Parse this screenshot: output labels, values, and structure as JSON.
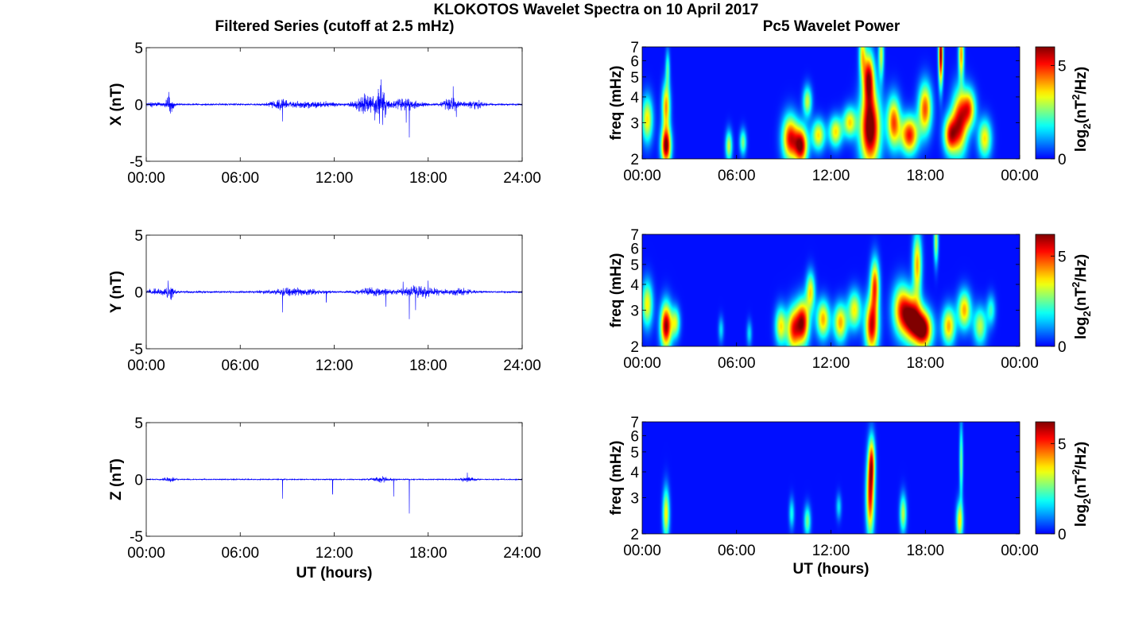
{
  "figure": {
    "title": "KLOKOTOS Wavelet Spectra on 10 April 2017",
    "left_column_title": "Filtered Series (cutoff at 2.5 mHz)",
    "right_column_title": "Pc5 Wavelet Power"
  },
  "colors": {
    "series_line": "#0000ff",
    "axes": "#000000",
    "spectrogram_background": "#00008f"
  },
  "chart_data": [
    {
      "id": "ts-x",
      "type": "line",
      "ylabel": "X (nT)",
      "xlabel": "",
      "xlim": [
        0,
        24
      ],
      "ylim": [
        -5,
        5
      ],
      "xticks": [
        "00:00",
        "06:00",
        "12:00",
        "18:00",
        "24:00"
      ],
      "yticks": [
        "5",
        "0",
        "-5"
      ],
      "base_amplitude": 0.1,
      "bursts": [
        {
          "t": 0.5,
          "w": 0.5,
          "a": 0.2
        },
        {
          "t": 1.5,
          "w": 0.25,
          "a": 0.8
        },
        {
          "t": 8.5,
          "w": 0.6,
          "a": 0.4
        },
        {
          "t": 10.5,
          "w": 1.5,
          "a": 0.3
        },
        {
          "t": 14.0,
          "w": 0.7,
          "a": 0.9
        },
        {
          "t": 15.0,
          "w": 0.35,
          "a": 1.6
        },
        {
          "t": 16.5,
          "w": 1.0,
          "a": 0.5
        },
        {
          "t": 19.5,
          "w": 0.6,
          "a": 0.6
        },
        {
          "t": 21.0,
          "w": 0.5,
          "a": 0.4
        }
      ],
      "spikes": [
        {
          "t": 1.45,
          "v": 1.1
        },
        {
          "t": 1.55,
          "v": -0.8
        },
        {
          "t": 8.7,
          "v": -1.5
        },
        {
          "t": 14.6,
          "v": -1.4
        },
        {
          "t": 15.0,
          "v": 2.2
        },
        {
          "t": 15.1,
          "v": -1.8
        },
        {
          "t": 16.6,
          "v": -1.6
        },
        {
          "t": 16.8,
          "v": -2.9
        },
        {
          "t": 19.6,
          "v": 1.6
        },
        {
          "t": 19.8,
          "v": -1.1
        }
      ]
    },
    {
      "id": "ts-y",
      "type": "line",
      "ylabel": "Y (nT)",
      "xlabel": "",
      "xlim": [
        0,
        24
      ],
      "ylim": [
        -5,
        5
      ],
      "xticks": [
        "00:00",
        "06:00",
        "12:00",
        "18:00",
        "24:00"
      ],
      "yticks": [
        "5",
        "0",
        "-5"
      ],
      "base_amplitude": 0.1,
      "bursts": [
        {
          "t": 0.6,
          "w": 0.6,
          "a": 0.25
        },
        {
          "t": 1.5,
          "w": 0.3,
          "a": 0.6
        },
        {
          "t": 9.5,
          "w": 1.5,
          "a": 0.35
        },
        {
          "t": 14.5,
          "w": 1.0,
          "a": 0.35
        },
        {
          "t": 17.5,
          "w": 1.2,
          "a": 0.55
        },
        {
          "t": 20.0,
          "w": 0.8,
          "a": 0.3
        }
      ],
      "spikes": [
        {
          "t": 1.4,
          "v": 1.0
        },
        {
          "t": 1.6,
          "v": -0.7
        },
        {
          "t": 8.7,
          "v": -1.8
        },
        {
          "t": 11.5,
          "v": -0.9
        },
        {
          "t": 15.3,
          "v": -1.3
        },
        {
          "t": 16.4,
          "v": 0.9
        },
        {
          "t": 16.8,
          "v": -2.4
        },
        {
          "t": 17.2,
          "v": -1.6
        },
        {
          "t": 18.0,
          "v": 1.0
        }
      ]
    },
    {
      "id": "ts-z",
      "type": "line",
      "ylabel": "Z (nT)",
      "xlabel": "UT (hours)",
      "xlim": [
        0,
        24
      ],
      "ylim": [
        -5,
        5
      ],
      "xticks": [
        "00:00",
        "06:00",
        "12:00",
        "18:00",
        "24:00"
      ],
      "yticks": [
        "5",
        "0",
        "-5"
      ],
      "base_amplitude": 0.06,
      "bursts": [
        {
          "t": 1.5,
          "w": 0.4,
          "a": 0.2
        },
        {
          "t": 15.0,
          "w": 0.6,
          "a": 0.25
        },
        {
          "t": 20.5,
          "w": 0.5,
          "a": 0.2
        }
      ],
      "spikes": [
        {
          "t": 8.7,
          "v": -1.7
        },
        {
          "t": 11.9,
          "v": -1.3
        },
        {
          "t": 15.8,
          "v": -1.5
        },
        {
          "t": 16.8,
          "v": -3.0
        },
        {
          "t": 20.5,
          "v": 0.6
        }
      ]
    },
    {
      "id": "spec-x",
      "type": "heatmap",
      "ylabel": "freq (mHz)",
      "xlabel": "",
      "xlim": [
        0,
        24
      ],
      "ylim": [
        2,
        7
      ],
      "yscale": "log",
      "xticks": [
        "00:00",
        "06:00",
        "12:00",
        "18:00",
        "00:00"
      ],
      "yticks": [
        2,
        3,
        4,
        5,
        6,
        7
      ],
      "colorbar": {
        "label": "log2(nT2/Hz)",
        "min": 0,
        "max": 6,
        "ticks": [
          0,
          5
        ]
      },
      "blobs": [
        {
          "t": 0.3,
          "f": 3.1,
          "st": 0.25,
          "sf": 0.18,
          "v": 3.5
        },
        {
          "t": 1.5,
          "f": 2.3,
          "st": 0.22,
          "sf": 0.15,
          "v": 6
        },
        {
          "t": 1.5,
          "f": 3.6,
          "st": 0.18,
          "sf": 0.18,
          "v": 4
        },
        {
          "t": 1.6,
          "f": 5.5,
          "st": 0.1,
          "sf": 0.15,
          "v": 2
        },
        {
          "t": 5.5,
          "f": 2.3,
          "st": 0.15,
          "sf": 0.12,
          "v": 3
        },
        {
          "t": 6.4,
          "f": 2.4,
          "st": 0.15,
          "sf": 0.1,
          "v": 2.5
        },
        {
          "t": 9.4,
          "f": 2.5,
          "st": 0.35,
          "sf": 0.18,
          "v": 5
        },
        {
          "t": 10.1,
          "f": 2.3,
          "st": 0.3,
          "sf": 0.15,
          "v": 5.5
        },
        {
          "t": 10.5,
          "f": 3.8,
          "st": 0.2,
          "sf": 0.12,
          "v": 3
        },
        {
          "t": 11.2,
          "f": 2.6,
          "st": 0.3,
          "sf": 0.12,
          "v": 3.5
        },
        {
          "t": 12.3,
          "f": 2.7,
          "st": 0.3,
          "sf": 0.12,
          "v": 3.5
        },
        {
          "t": 13.2,
          "f": 3.0,
          "st": 0.3,
          "sf": 0.12,
          "v": 3.5
        },
        {
          "t": 14.5,
          "f": 2.8,
          "st": 0.45,
          "sf": 0.3,
          "v": 6.5
        },
        {
          "t": 14.4,
          "f": 5.0,
          "st": 0.25,
          "sf": 0.2,
          "v": 5
        },
        {
          "t": 14.0,
          "f": 6.6,
          "st": 0.15,
          "sf": 0.2,
          "v": 3
        },
        {
          "t": 15.2,
          "f": 6.5,
          "st": 0.12,
          "sf": 0.2,
          "v": 3
        },
        {
          "t": 16.0,
          "f": 3.0,
          "st": 0.3,
          "sf": 0.2,
          "v": 4.5
        },
        {
          "t": 17.0,
          "f": 2.6,
          "st": 0.4,
          "sf": 0.15,
          "v": 5
        },
        {
          "t": 18.0,
          "f": 3.5,
          "st": 0.3,
          "sf": 0.2,
          "v": 4.5
        },
        {
          "t": 19.0,
          "f": 6.5,
          "st": 0.1,
          "sf": 0.25,
          "v": 6
        },
        {
          "t": 19.6,
          "f": 2.6,
          "st": 0.3,
          "sf": 0.15,
          "v": 4.5
        },
        {
          "t": 20.2,
          "f": 3.0,
          "st": 0.35,
          "sf": 0.25,
          "v": 5
        },
        {
          "t": 20.3,
          "f": 6.5,
          "st": 0.12,
          "sf": 0.2,
          "v": 4
        },
        {
          "t": 20.8,
          "f": 3.5,
          "st": 0.3,
          "sf": 0.15,
          "v": 4
        },
        {
          "t": 21.8,
          "f": 2.5,
          "st": 0.3,
          "sf": 0.15,
          "v": 3.5
        }
      ]
    },
    {
      "id": "spec-y",
      "type": "heatmap",
      "ylabel": "freq (mHz)",
      "xlabel": "",
      "xlim": [
        0,
        24
      ],
      "ylim": [
        2,
        7
      ],
      "yscale": "log",
      "xticks": [
        "00:00",
        "06:00",
        "12:00",
        "18:00",
        "00:00"
      ],
      "yticks": [
        2,
        3,
        4,
        5,
        6,
        7
      ],
      "colorbar": {
        "label": "log2(nT2/Hz)",
        "min": 0,
        "max": 6.2,
        "ticks": [
          0,
          5
        ]
      },
      "blobs": [
        {
          "t": 0.3,
          "f": 3.2,
          "st": 0.25,
          "sf": 0.18,
          "v": 3.5
        },
        {
          "t": 1.5,
          "f": 2.5,
          "st": 0.25,
          "sf": 0.18,
          "v": 6
        },
        {
          "t": 2.1,
          "f": 2.6,
          "st": 0.2,
          "sf": 0.12,
          "v": 3
        },
        {
          "t": 5.0,
          "f": 2.4,
          "st": 0.12,
          "sf": 0.1,
          "v": 1.5
        },
        {
          "t": 6.8,
          "f": 2.3,
          "st": 0.12,
          "sf": 0.1,
          "v": 1.5
        },
        {
          "t": 8.8,
          "f": 2.5,
          "st": 0.25,
          "sf": 0.15,
          "v": 3.5
        },
        {
          "t": 9.6,
          "f": 2.4,
          "st": 0.3,
          "sf": 0.18,
          "v": 4.5
        },
        {
          "t": 10.2,
          "f": 2.6,
          "st": 0.3,
          "sf": 0.18,
          "v": 5.5
        },
        {
          "t": 10.7,
          "f": 3.7,
          "st": 0.2,
          "sf": 0.15,
          "v": 3.5
        },
        {
          "t": 11.5,
          "f": 2.7,
          "st": 0.3,
          "sf": 0.15,
          "v": 4
        },
        {
          "t": 12.6,
          "f": 2.6,
          "st": 0.3,
          "sf": 0.15,
          "v": 4
        },
        {
          "t": 13.5,
          "f": 3.0,
          "st": 0.3,
          "sf": 0.15,
          "v": 3.5
        },
        {
          "t": 14.6,
          "f": 2.5,
          "st": 0.3,
          "sf": 0.22,
          "v": 5.5
        },
        {
          "t": 14.8,
          "f": 4.0,
          "st": 0.2,
          "sf": 0.2,
          "v": 4.5
        },
        {
          "t": 16.5,
          "f": 3.0,
          "st": 0.4,
          "sf": 0.2,
          "v": 4.5
        },
        {
          "t": 17.2,
          "f": 2.7,
          "st": 0.4,
          "sf": 0.18,
          "v": 5.5
        },
        {
          "t": 17.9,
          "f": 2.4,
          "st": 0.4,
          "sf": 0.15,
          "v": 6
        },
        {
          "t": 17.5,
          "f": 5.0,
          "st": 0.2,
          "sf": 0.25,
          "v": 4
        },
        {
          "t": 18.7,
          "f": 6.5,
          "st": 0.1,
          "sf": 0.18,
          "v": 3
        },
        {
          "t": 19.5,
          "f": 2.5,
          "st": 0.3,
          "sf": 0.15,
          "v": 4
        },
        {
          "t": 20.5,
          "f": 3.0,
          "st": 0.3,
          "sf": 0.15,
          "v": 4
        },
        {
          "t": 21.5,
          "f": 2.5,
          "st": 0.3,
          "sf": 0.15,
          "v": 3
        },
        {
          "t": 22.2,
          "f": 3.0,
          "st": 0.2,
          "sf": 0.12,
          "v": 2
        }
      ]
    },
    {
      "id": "spec-z",
      "type": "heatmap",
      "ylabel": "freq (mHz)",
      "xlabel": "UT (hours)",
      "xlim": [
        0,
        24
      ],
      "ylim": [
        2,
        7
      ],
      "yscale": "log",
      "xticks": [
        "00:00",
        "06:00",
        "12:00",
        "18:00",
        "00:00"
      ],
      "yticks": [
        2,
        3,
        4,
        5,
        6,
        7
      ],
      "colorbar": {
        "label": "log2(nT2/Hz)",
        "min": 0,
        "max": 6.2,
        "ticks": [
          0,
          5
        ]
      },
      "blobs": [
        {
          "t": 1.5,
          "f": 2.5,
          "st": 0.15,
          "sf": 0.2,
          "v": 3.5
        },
        {
          "t": 9.5,
          "f": 2.5,
          "st": 0.12,
          "sf": 0.12,
          "v": 1.8
        },
        {
          "t": 10.5,
          "f": 2.3,
          "st": 0.15,
          "sf": 0.12,
          "v": 2.5
        },
        {
          "t": 12.5,
          "f": 2.7,
          "st": 0.12,
          "sf": 0.1,
          "v": 1.5
        },
        {
          "t": 14.5,
          "f": 3.0,
          "st": 0.18,
          "sf": 0.3,
          "v": 5
        },
        {
          "t": 14.6,
          "f": 4.5,
          "st": 0.15,
          "sf": 0.2,
          "v": 4
        },
        {
          "t": 16.6,
          "f": 2.5,
          "st": 0.15,
          "sf": 0.15,
          "v": 3
        },
        {
          "t": 20.2,
          "f": 2.3,
          "st": 0.15,
          "sf": 0.15,
          "v": 3.5
        },
        {
          "t": 20.3,
          "f": 4.5,
          "st": 0.08,
          "sf": 0.3,
          "v": 2.5
        }
      ]
    }
  ]
}
